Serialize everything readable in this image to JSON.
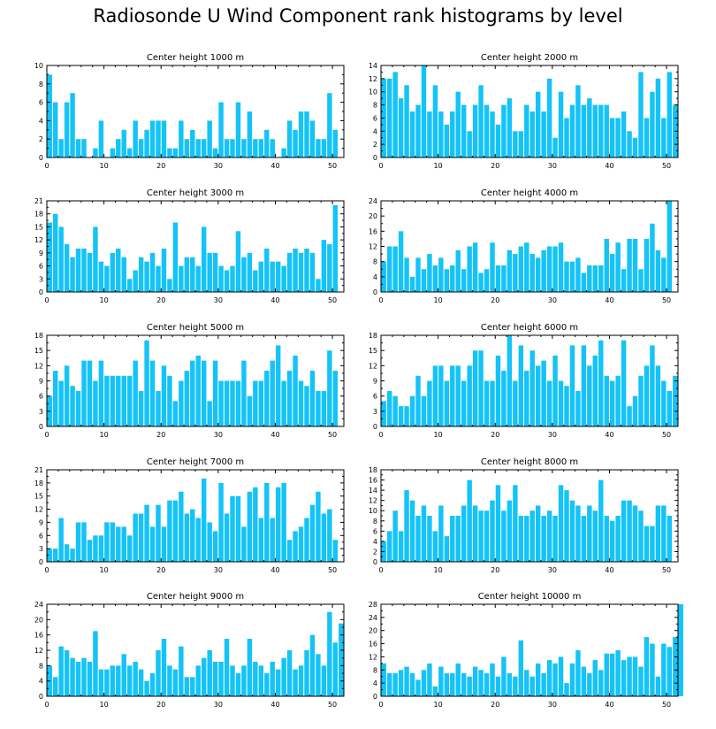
{
  "title": "Radiosonde U Wind Component rank histograms by level",
  "colors": {
    "bar": "#14C3F7",
    "frame": "#000000"
  },
  "chart_data": [
    {
      "type": "bar",
      "title": "Center height 1000 m",
      "xlim": [
        0,
        52
      ],
      "ylim": [
        0,
        10
      ],
      "yticks": [
        0,
        2,
        4,
        6,
        8,
        10
      ],
      "xticks": [
        0,
        10,
        20,
        30,
        40,
        50
      ],
      "values": [
        9,
        6,
        2,
        6,
        7,
        2,
        2,
        0,
        1,
        4,
        0,
        1,
        2,
        3,
        1,
        4,
        2,
        3,
        4,
        4,
        4,
        1,
        1,
        4,
        2,
        3,
        2,
        2,
        4,
        1,
        6,
        2,
        2,
        6,
        2,
        5,
        2,
        2,
        3,
        2,
        0,
        1,
        4,
        3,
        5,
        5,
        4,
        2,
        2,
        7,
        3,
        0
      ]
    },
    {
      "type": "bar",
      "title": "Center height 2000 m",
      "xlim": [
        0,
        52
      ],
      "ylim": [
        0,
        14
      ],
      "yticks": [
        0,
        2,
        4,
        6,
        8,
        10,
        12,
        14
      ],
      "xticks": [
        0,
        10,
        20,
        30,
        40,
        50
      ],
      "values": [
        12,
        12,
        13,
        9,
        11,
        7,
        8,
        14,
        7,
        11,
        7,
        5,
        7,
        10,
        8,
        4,
        8,
        11,
        8,
        7,
        5,
        8,
        9,
        4,
        4,
        8,
        7,
        10,
        7,
        12,
        3,
        10,
        6,
        8,
        11,
        8,
        9,
        8,
        8,
        8,
        6,
        6,
        7,
        4,
        3,
        13,
        6,
        10,
        12,
        6,
        13,
        8
      ]
    },
    {
      "type": "bar",
      "title": "Center height 3000 m",
      "xlim": [
        0,
        52
      ],
      "ylim": [
        0,
        21
      ],
      "yticks": [
        0,
        3,
        6,
        9,
        12,
        15,
        18,
        21
      ],
      "xticks": [
        0,
        10,
        20,
        30,
        40,
        50
      ],
      "values": [
        16,
        18,
        15,
        11,
        8,
        10,
        10,
        9,
        15,
        7,
        6,
        9,
        10,
        8,
        3,
        5,
        8,
        7,
        9,
        6,
        10,
        3,
        16,
        6,
        8,
        8,
        6,
        15,
        9,
        9,
        6,
        5,
        6,
        14,
        8,
        9,
        5,
        7,
        10,
        7,
        7,
        6,
        9,
        10,
        9,
        10,
        9,
        3,
        12,
        11,
        20,
        0
      ]
    },
    {
      "type": "bar",
      "title": "Center height 4000 m",
      "xlim": [
        0,
        52
      ],
      "ylim": [
        0,
        24
      ],
      "yticks": [
        0,
        4,
        8,
        12,
        16,
        20,
        24
      ],
      "xticks": [
        0,
        10,
        20,
        30,
        40,
        50
      ],
      "values": [
        8,
        12,
        12,
        16,
        9,
        4,
        9,
        6,
        10,
        7,
        9,
        6,
        7,
        11,
        6,
        12,
        13,
        5,
        6,
        13,
        7,
        7,
        11,
        10,
        12,
        13,
        10,
        9,
        11,
        12,
        12,
        13,
        8,
        8,
        9,
        5,
        7,
        7,
        7,
        14,
        10,
        13,
        6,
        14,
        14,
        6,
        14,
        18,
        11,
        9,
        24,
        0
      ]
    },
    {
      "type": "bar",
      "title": "Center height 5000 m",
      "xlim": [
        0,
        52
      ],
      "ylim": [
        0,
        18
      ],
      "yticks": [
        0,
        3,
        6,
        9,
        12,
        15,
        18
      ],
      "xticks": [
        0,
        10,
        20,
        30,
        40,
        50
      ],
      "values": [
        6,
        11,
        9,
        12,
        8,
        7,
        13,
        13,
        9,
        13,
        10,
        10,
        10,
        10,
        10,
        13,
        7,
        17,
        13,
        7,
        12,
        10,
        5,
        9,
        11,
        13,
        14,
        13,
        5,
        13,
        9,
        9,
        9,
        9,
        13,
        6,
        9,
        9,
        11,
        13,
        16,
        9,
        11,
        14,
        9,
        8,
        11,
        7,
        7,
        15,
        11,
        0
      ]
    },
    {
      "type": "bar",
      "title": "Center height 6000 m",
      "xlim": [
        0,
        52
      ],
      "ylim": [
        0,
        18
      ],
      "yticks": [
        0,
        3,
        6,
        9,
        12,
        15,
        18
      ],
      "xticks": [
        0,
        10,
        20,
        30,
        40,
        50
      ],
      "values": [
        5,
        7,
        6,
        4,
        4,
        6,
        10,
        6,
        9,
        12,
        12,
        9,
        12,
        12,
        9,
        12,
        15,
        15,
        9,
        9,
        14,
        11,
        18,
        9,
        16,
        11,
        15,
        12,
        13,
        9,
        14,
        9,
        8,
        16,
        7,
        16,
        12,
        14,
        17,
        10,
        9,
        10,
        17,
        4,
        6,
        10,
        12,
        16,
        12,
        9,
        7,
        10
      ]
    },
    {
      "type": "bar",
      "title": "Center height 7000 m",
      "xlim": [
        0,
        52
      ],
      "ylim": [
        0,
        21
      ],
      "yticks": [
        0,
        3,
        6,
        9,
        12,
        15,
        18,
        21
      ],
      "xticks": [
        0,
        10,
        20,
        30,
        40,
        50
      ],
      "values": [
        3,
        3,
        10,
        4,
        3,
        9,
        9,
        5,
        6,
        6,
        9,
        9,
        8,
        8,
        6,
        11,
        11,
        13,
        8,
        13,
        8,
        14,
        14,
        16,
        11,
        12,
        10,
        19,
        9,
        7,
        18,
        11,
        15,
        15,
        8,
        16,
        17,
        10,
        18,
        10,
        17,
        18,
        5,
        7,
        8,
        10,
        13,
        16,
        11,
        12,
        5,
        0
      ]
    },
    {
      "type": "bar",
      "title": "Center height 8000 m",
      "xlim": [
        0,
        52
      ],
      "ylim": [
        0,
        18
      ],
      "yticks": [
        0,
        2,
        4,
        6,
        8,
        10,
        12,
        14,
        16,
        18
      ],
      "xticks": [
        0,
        10,
        20,
        30,
        40,
        50
      ],
      "values": [
        4,
        6,
        10,
        6,
        14,
        12,
        9,
        11,
        9,
        6,
        11,
        5,
        9,
        9,
        11,
        16,
        11,
        10,
        10,
        12,
        15,
        10,
        12,
        15,
        9,
        9,
        10,
        11,
        9,
        10,
        9,
        15,
        14,
        12,
        11,
        9,
        11,
        10,
        16,
        9,
        8,
        9,
        12,
        12,
        11,
        10,
        7,
        7,
        11,
        11,
        9,
        0
      ]
    },
    {
      "type": "bar",
      "title": "Center height 9000 m",
      "xlim": [
        0,
        52
      ],
      "ylim": [
        0,
        24
      ],
      "yticks": [
        0,
        4,
        8,
        12,
        16,
        20,
        24
      ],
      "xticks": [
        0,
        10,
        20,
        30,
        40,
        50
      ],
      "values": [
        8,
        5,
        13,
        12,
        10,
        9,
        10,
        9,
        17,
        7,
        7,
        8,
        8,
        11,
        8,
        9,
        7,
        4,
        6,
        12,
        15,
        8,
        7,
        13,
        5,
        5,
        8,
        10,
        12,
        9,
        9,
        15,
        8,
        6,
        8,
        15,
        9,
        8,
        6,
        9,
        7,
        10,
        12,
        7,
        8,
        12,
        16,
        11,
        8,
        22,
        14,
        19
      ]
    },
    {
      "type": "bar",
      "title": "Center height 10000 m",
      "xlim": [
        0,
        52
      ],
      "ylim": [
        0,
        28
      ],
      "yticks": [
        0,
        4,
        8,
        12,
        16,
        20,
        24,
        28
      ],
      "xticks": [
        0,
        10,
        20,
        30,
        40,
        50
      ],
      "values": [
        10,
        7,
        7,
        8,
        9,
        7,
        5,
        8,
        10,
        3,
        9,
        7,
        7,
        10,
        7,
        6,
        9,
        8,
        7,
        10,
        6,
        12,
        7,
        6,
        17,
        8,
        6,
        10,
        7,
        11,
        10,
        12,
        4,
        10,
        14,
        9,
        7,
        11,
        8,
        13,
        13,
        14,
        11,
        12,
        12,
        9,
        18,
        16,
        6,
        16,
        15,
        18,
        28,
        0
      ]
    }
  ]
}
